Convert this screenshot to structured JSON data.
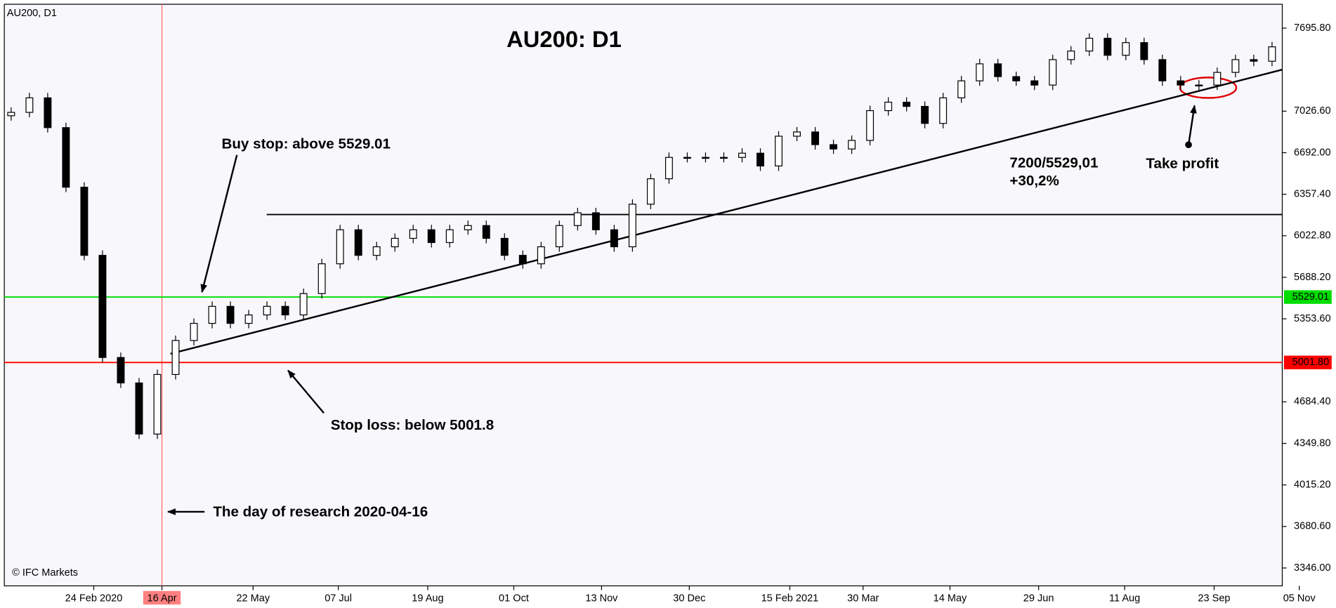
{
  "chart_data": {
    "type": "candlestick",
    "title": "AU200: D1",
    "symbol": "AU200, D1",
    "copyright": "© IFC Markets",
    "categories": [
      "24 Feb 2020",
      "16 Apr",
      "22 May",
      "07 Jul",
      "19 Aug",
      "01 Oct",
      "13 Nov",
      "30 Dec",
      "15 Feb 2021",
      "30 Mar",
      "14 May",
      "29 Jun",
      "11 Aug",
      "23 Sep",
      "05 Nov"
    ],
    "ylim": [
      3202,
      7888
    ],
    "yticks": [
      {
        "value": 7695.8,
        "label": "7695.80"
      },
      {
        "value": 7026.6,
        "label": "7026.60"
      },
      {
        "value": 6692,
        "label": "6692.00"
      },
      {
        "value": 6357.4,
        "label": "6357.40"
      },
      {
        "value": 6022.8,
        "label": "6022.80"
      },
      {
        "value": 5688.2,
        "label": "5688.20"
      },
      {
        "value": 5353.6,
        "label": "5353.60"
      },
      {
        "value": 4684.4,
        "label": "4684.40"
      },
      {
        "value": 4349.8,
        "label": "4349.80"
      },
      {
        "value": 4015.2,
        "label": "4015.20"
      },
      {
        "value": 3680.6,
        "label": "3680.60"
      },
      {
        "value": 3346,
        "label": "3346.00"
      }
    ],
    "open": [
      6990,
      7017,
      7134,
      6894,
      6414,
      5865,
      5042,
      4837,
      4425,
      4905,
      5179,
      5317,
      5454,
      5317,
      5385,
      5454,
      5385,
      5557,
      5797,
      6071,
      5865,
      5934,
      6002,
      6071,
      5968,
      6071,
      6105,
      6002,
      5865,
      5797,
      5934,
      6105,
      6208,
      6071,
      5934,
      6277,
      6482,
      6654,
      6654,
      6654,
      6654,
      6688,
      6585,
      6825,
      6859,
      6757,
      6722,
      6791,
      7031,
      7099,
      7065,
      6928,
      7134,
      7271,
      7408,
      7305,
      7271,
      7237,
      7442,
      7511,
      7614,
      7477,
      7579,
      7442,
      7271,
      7237,
      7237,
      7339,
      7442,
      7429
    ],
    "high": [
      7057,
      7174,
      7174,
      6934,
      6454,
      5905,
      5082,
      4877,
      4945,
      5219,
      5357,
      5494,
      5494,
      5425,
      5494,
      5494,
      5597,
      5837,
      6111,
      6111,
      5974,
      6042,
      6111,
      6111,
      6111,
      6145,
      6145,
      6042,
      5905,
      5974,
      6145,
      6248,
      6248,
      6111,
      6317,
      6522,
      6694,
      6694,
      6694,
      6694,
      6728,
      6728,
      6865,
      6899,
      6899,
      6797,
      6831,
      7071,
      7139,
      7139,
      7105,
      7174,
      7311,
      7448,
      7448,
      7345,
      7311,
      7482,
      7551,
      7654,
      7654,
      7619,
      7619,
      7482,
      7311,
      7277,
      7379,
      7482,
      7482,
      7585
    ],
    "low": [
      6950,
      6977,
      6854,
      6374,
      5825,
      5002,
      4797,
      4385,
      4385,
      4865,
      5139,
      5277,
      5277,
      5277,
      5345,
      5345,
      5345,
      5517,
      5757,
      5825,
      5825,
      5894,
      5962,
      5928,
      5928,
      6031,
      5962,
      5825,
      5757,
      5757,
      5894,
      6065,
      6031,
      5894,
      5894,
      6237,
      6442,
      6614,
      6614,
      6614,
      6614,
      6545,
      6545,
      6785,
      6717,
      6682,
      6682,
      6751,
      6991,
      7025,
      6888,
      6888,
      7094,
      7231,
      7265,
      7231,
      7197,
      7197,
      7402,
      7471,
      7437,
      7437,
      7402,
      7231,
      7197,
      7197,
      7197,
      7299,
      7389,
      7389
    ],
    "close": [
      7017,
      7134,
      6894,
      6414,
      5865,
      5042,
      4837,
      4425,
      4905,
      5179,
      5317,
      5454,
      5317,
      5385,
      5454,
      5385,
      5557,
      5797,
      6071,
      5865,
      5934,
      6002,
      6071,
      5968,
      6071,
      6105,
      6002,
      5865,
      5797,
      5934,
      6105,
      6208,
      6071,
      5934,
      6277,
      6482,
      6654,
      6654,
      6654,
      6654,
      6688,
      6585,
      6825,
      6859,
      6757,
      6722,
      6791,
      7031,
      7099,
      7065,
      6928,
      7134,
      7271,
      7408,
      7305,
      7271,
      7237,
      7442,
      7511,
      7614,
      7477,
      7579,
      7442,
      7271,
      7237,
      7237,
      7339,
      7442,
      7429,
      7545
    ],
    "buy_stop": {
      "value": 5529.01,
      "label": "5529.01",
      "color": "#00dd00"
    },
    "stop_loss": {
      "value": 5001.8,
      "label": "5001.80",
      "color": "#ff0000"
    },
    "resistance": 6194,
    "trendline": [
      5072,
      7361
    ],
    "annotations": {
      "buy_stop": "Buy stop: above 5529.01",
      "stop_loss": "Stop loss: below 5001.8",
      "research": "The day of research 2020-04-16",
      "profit_ratio": "7200/5529,01",
      "profit_pct": "+30,2%",
      "take_profit": "Take profit"
    }
  }
}
